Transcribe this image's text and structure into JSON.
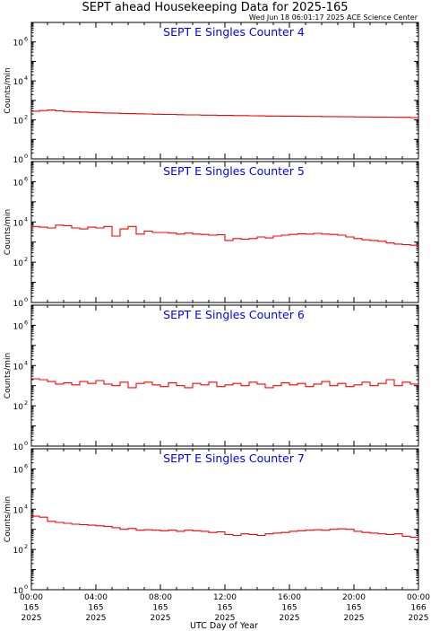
{
  "title": "SEPT ahead Housekeeping Data for 2025-165",
  "timestamp": "Wed Jun 18 06:01:17 2025 ACE Science Center",
  "xlabel": "UTC Day of Year",
  "ylabel": "Counts/min",
  "colors": {
    "line": "#ff0000",
    "panel_title": "#0000ff",
    "axes": "#000000"
  },
  "x_ticks": [
    {
      "t": 0,
      "line1": "00:00",
      "line2": "165",
      "line3": "2025"
    },
    {
      "t": 4,
      "line1": "04:00",
      "line2": "165",
      "line3": "2025"
    },
    {
      "t": 8,
      "line1": "08:00",
      "line2": "165",
      "line3": "2025"
    },
    {
      "t": 12,
      "line1": "12:00",
      "line2": "165",
      "line3": "2025"
    },
    {
      "t": 16,
      "line1": "16:00",
      "line2": "165",
      "line3": "2025"
    },
    {
      "t": 20,
      "line1": "20:00",
      "line2": "165",
      "line3": "2025"
    },
    {
      "t": 24,
      "line1": "00:00",
      "line2": "166",
      "line3": "2025"
    }
  ],
  "chart_data": [
    {
      "type": "line",
      "title": "SEPT E Singles Counter 4",
      "ylabel": "Counts/min",
      "xlabel": "UTC Day of Year",
      "y_scale": "log",
      "ylim": [
        1,
        10000000
      ],
      "xlim": [
        0,
        24
      ],
      "yticks": [
        {
          "exp": 0,
          "label": "10"
        },
        {
          "exp": 2,
          "label": "10"
        },
        {
          "exp": 4,
          "label": "10"
        },
        {
          "exp": 6,
          "label": "10"
        }
      ],
      "series": [
        {
          "x": [
            0,
            0.5,
            1,
            1.5,
            2,
            2.5,
            3,
            3.5,
            4,
            4.5,
            5,
            5.5,
            6,
            6.5,
            7,
            7.5,
            8,
            8.5,
            9,
            9.5,
            10,
            10.5,
            11,
            11.5,
            12,
            12.5,
            13,
            13.5,
            14,
            14.5,
            15,
            15.5,
            16,
            16.5,
            17,
            17.5,
            18,
            18.5,
            19,
            19.5,
            20,
            20.5,
            21,
            21.5,
            22,
            22.5,
            23,
            23.5
          ],
          "y": [
            280,
            300,
            320,
            290,
            270,
            260,
            250,
            240,
            230,
            225,
            220,
            215,
            210,
            205,
            200,
            195,
            190,
            190,
            185,
            180,
            180,
            175,
            175,
            170,
            170,
            165,
            165,
            162,
            160,
            158,
            158,
            155,
            155,
            152,
            150,
            150,
            148,
            148,
            145,
            145,
            142,
            142,
            140,
            140,
            138,
            135,
            135,
            130
          ]
        }
      ]
    },
    {
      "type": "line",
      "title": "SEPT E Singles Counter 5",
      "ylabel": "Counts/min",
      "xlabel": "UTC Day of Year",
      "y_scale": "log",
      "ylim": [
        1,
        10000000
      ],
      "xlim": [
        0,
        24
      ],
      "yticks": [
        {
          "exp": 0,
          "label": "10"
        },
        {
          "exp": 2,
          "label": "10"
        },
        {
          "exp": 4,
          "label": "10"
        },
        {
          "exp": 6,
          "label": "10"
        }
      ],
      "series": [
        {
          "x": [
            0,
            0.5,
            1,
            1.5,
            2,
            2.5,
            3,
            3.5,
            4,
            4.5,
            5,
            5.5,
            6,
            6.5,
            7,
            7.5,
            8,
            8.5,
            9,
            9.5,
            10,
            10.5,
            11,
            11.5,
            12,
            12.5,
            13,
            13.5,
            14,
            14.5,
            15,
            15.5,
            16,
            16.5,
            17,
            17.5,
            18,
            18.5,
            19,
            19.5,
            20,
            20.5,
            21,
            21.5,
            22,
            22.5,
            23,
            23.5
          ],
          "y": [
            6000,
            5500,
            5000,
            7000,
            6500,
            5000,
            4500,
            5500,
            5000,
            6000,
            2000,
            4500,
            6000,
            2500,
            3500,
            3000,
            3000,
            2800,
            2500,
            2800,
            2500,
            2400,
            2200,
            2300,
            1200,
            1500,
            1400,
            1500,
            1800,
            1600,
            2000,
            2200,
            2400,
            2600,
            2500,
            2700,
            2500,
            2400,
            2200,
            1800,
            1500,
            1300,
            1200,
            1100,
            900,
            800,
            750,
            700
          ]
        }
      ]
    },
    {
      "type": "line",
      "title": "SEPT E Singles Counter 6",
      "ylabel": "Counts/min",
      "xlabel": "UTC Day of Year",
      "y_scale": "log",
      "ylim": [
        1,
        10000000
      ],
      "xlim": [
        0,
        24
      ],
      "yticks": [
        {
          "exp": 0,
          "label": "10"
        },
        {
          "exp": 2,
          "label": "10"
        },
        {
          "exp": 4,
          "label": "10"
        },
        {
          "exp": 6,
          "label": "10"
        }
      ],
      "series": [
        {
          "x": [
            0,
            0.5,
            1,
            1.5,
            2,
            2.5,
            3,
            3.5,
            4,
            4.5,
            5,
            5.5,
            6,
            6.5,
            7,
            7.5,
            8,
            8.5,
            9,
            9.5,
            10,
            10.5,
            11,
            11.5,
            12,
            12.5,
            13,
            13.5,
            14,
            14.5,
            15,
            15.5,
            16,
            16.5,
            17,
            17.5,
            18,
            18.5,
            19,
            19.5,
            20,
            20.5,
            21,
            21.5,
            22,
            22.5,
            23,
            23.5
          ],
          "y": [
            2200,
            2000,
            1600,
            1200,
            1400,
            1100,
            1600,
            1300,
            1800,
            1200,
            1000,
            1500,
            800,
            1300,
            1500,
            1100,
            900,
            1400,
            1000,
            800,
            1300,
            1100,
            1500,
            900,
            1100,
            1300,
            1000,
            1500,
            1200,
            800,
            1000,
            1400,
            1100,
            1300,
            900,
            1200,
            1600,
            1000,
            1300,
            900,
            1100,
            1500,
            1000,
            1300,
            2000,
            1000,
            1500,
            1200
          ]
        }
      ]
    },
    {
      "type": "line",
      "title": "SEPT E Singles Counter 7",
      "ylabel": "Counts/min",
      "xlabel": "UTC Day of Year",
      "y_scale": "log",
      "ylim": [
        1,
        10000000
      ],
      "xlim": [
        0,
        24
      ],
      "yticks": [
        {
          "exp": 0,
          "label": "10"
        },
        {
          "exp": 2,
          "label": "10"
        },
        {
          "exp": 4,
          "label": "10"
        },
        {
          "exp": 6,
          "label": "10"
        }
      ],
      "series": [
        {
          "x": [
            0,
            0.5,
            1,
            1.5,
            2,
            2.5,
            3,
            3.5,
            4,
            4.5,
            5,
            5.5,
            6,
            6.5,
            7,
            7.5,
            8,
            8.5,
            9,
            9.5,
            10,
            10.5,
            11,
            11.5,
            12,
            12.5,
            13,
            13.5,
            14,
            14.5,
            15,
            15.5,
            16,
            16.5,
            17,
            17.5,
            18,
            18.5,
            19,
            19.5,
            20,
            20.5,
            21,
            21.5,
            22,
            22.5,
            23,
            23.5
          ],
          "y": [
            4500,
            4000,
            2500,
            2200,
            2000,
            1800,
            1700,
            1600,
            1500,
            1400,
            1200,
            1000,
            1100,
            900,
            950,
            900,
            850,
            900,
            800,
            900,
            850,
            800,
            700,
            750,
            550,
            500,
            600,
            550,
            500,
            600,
            650,
            700,
            800,
            850,
            900,
            950,
            900,
            1000,
            1050,
            1000,
            800,
            700,
            650,
            600,
            550,
            600,
            450,
            400
          ]
        }
      ]
    }
  ]
}
